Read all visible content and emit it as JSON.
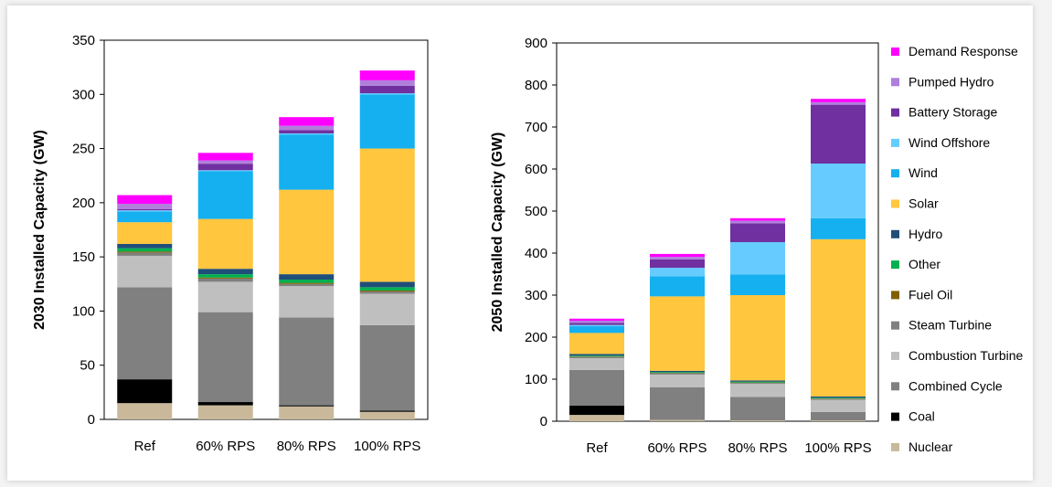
{
  "chart_data": [
    {
      "type": "bar",
      "stacked": true,
      "ylabel": "2030 Installed Capacity (GW)",
      "ylim": [
        0,
        350
      ],
      "yticks": [
        0,
        50,
        100,
        150,
        200,
        250,
        300,
        350
      ],
      "categories": [
        "Ref",
        "60% RPS",
        "80% RPS",
        "100% RPS"
      ],
      "series": [
        {
          "name": "Nuclear",
          "values": [
            15,
            13,
            12,
            7
          ]
        },
        {
          "name": "Coal",
          "values": [
            22,
            3,
            1,
            1
          ]
        },
        {
          "name": "Combined Cycle",
          "values": [
            85,
            83,
            81,
            79
          ]
        },
        {
          "name": "Combustion Turbine",
          "values": [
            29,
            28,
            29,
            29
          ]
        },
        {
          "name": "Steam Turbine",
          "values": [
            3,
            3,
            2,
            2
          ]
        },
        {
          "name": "Fuel Oil",
          "values": [
            1,
            1,
            1,
            1
          ]
        },
        {
          "name": "Other",
          "values": [
            3,
            3,
            3,
            3
          ]
        },
        {
          "name": "Hydro",
          "values": [
            4,
            5,
            5,
            5
          ]
        },
        {
          "name": "Solar",
          "values": [
            20,
            46,
            78,
            123
          ]
        },
        {
          "name": "Wind",
          "values": [
            10,
            44,
            51,
            50
          ]
        },
        {
          "name": "Wind Offshore",
          "values": [
            1,
            1,
            1,
            1
          ]
        },
        {
          "name": "Battery Storage",
          "values": [
            1,
            6,
            3,
            7
          ]
        },
        {
          "name": "Pumped Hydro",
          "values": [
            5,
            3,
            4,
            5
          ]
        },
        {
          "name": "Demand Response",
          "values": [
            8,
            7,
            8,
            9
          ]
        }
      ]
    },
    {
      "type": "bar",
      "stacked": true,
      "ylabel": "2050 Installed Capacity (GW)",
      "ylim": [
        0,
        900
      ],
      "yticks": [
        0,
        100,
        200,
        300,
        400,
        500,
        600,
        700,
        800,
        900
      ],
      "categories": [
        "Ref",
        "60% RPS",
        "80% RPS",
        "100% RPS"
      ],
      "series": [
        {
          "name": "Nuclear",
          "values": [
            15,
            3,
            2,
            2
          ]
        },
        {
          "name": "Coal",
          "values": [
            22,
            0,
            0,
            0
          ]
        },
        {
          "name": "Combined Cycle",
          "values": [
            85,
            78,
            56,
            20
          ]
        },
        {
          "name": "Combustion Turbine",
          "values": [
            28,
            30,
            31,
            29
          ]
        },
        {
          "name": "Steam Turbine",
          "values": [
            3,
            3,
            2,
            2
          ]
        },
        {
          "name": "Fuel Oil",
          "values": [
            1,
            1,
            1,
            1
          ]
        },
        {
          "name": "Other",
          "values": [
            2,
            2,
            2,
            2
          ]
        },
        {
          "name": "Hydro",
          "values": [
            4,
            3,
            3,
            3
          ]
        },
        {
          "name": "Solar",
          "values": [
            50,
            177,
            203,
            374
          ]
        },
        {
          "name": "Wind",
          "values": [
            16,
            48,
            49,
            50
          ]
        },
        {
          "name": "Wind Offshore",
          "values": [
            3,
            20,
            77,
            130
          ]
        },
        {
          "name": "Battery Storage",
          "values": [
            5,
            20,
            45,
            140
          ]
        },
        {
          "name": "Pumped Hydro",
          "values": [
            5,
            6,
            6,
            6
          ]
        },
        {
          "name": "Demand Response",
          "values": [
            5,
            7,
            6,
            8
          ]
        }
      ]
    }
  ],
  "legend": [
    {
      "name": "Demand Response",
      "color": "#ff00ff"
    },
    {
      "name": "Pumped Hydro",
      "color": "#b07fdc"
    },
    {
      "name": "Battery Storage",
      "color": "#7030a0"
    },
    {
      "name": "Wind Offshore",
      "color": "#66ccff"
    },
    {
      "name": "Wind",
      "color": "#15b0f0"
    },
    {
      "name": "Solar",
      "color": "#ffc63e"
    },
    {
      "name": "Hydro",
      "color": "#1f4e79"
    },
    {
      "name": "Other",
      "color": "#00b050"
    },
    {
      "name": "Fuel Oil",
      "color": "#7f6000"
    },
    {
      "name": "Steam Turbine",
      "color": "#808080"
    },
    {
      "name": "Combustion Turbine",
      "color": "#bfbfbf"
    },
    {
      "name": "Combined Cycle",
      "color": "#808080"
    },
    {
      "name": "Coal",
      "color": "#000000"
    },
    {
      "name": "Nuclear",
      "color": "#c9b99a"
    }
  ]
}
